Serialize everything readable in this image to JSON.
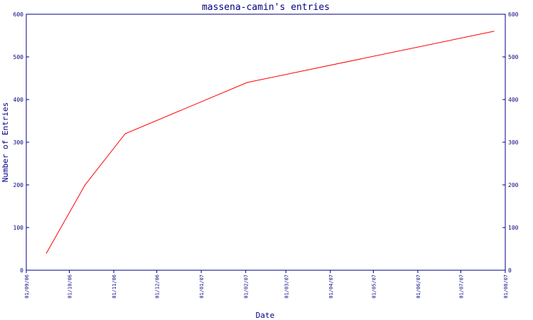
{
  "chart_data": {
    "type": "line",
    "title": "massena-camin's entries",
    "xlabel": "Date",
    "ylabel": "Number of Entries",
    "ylim": [
      0,
      600
    ],
    "xlim": [
      "2006-09-01",
      "2007-08-01"
    ],
    "y_ticks": [
      0,
      100,
      200,
      300,
      400,
      500,
      600
    ],
    "y_tick_labels": [
      "0",
      "100",
      "200",
      "300",
      "400",
      "500",
      "600"
    ],
    "x_ticks": [
      "2006-09-01",
      "2006-10-01",
      "2006-11-01",
      "2006-12-01",
      "2007-01-01",
      "2007-02-01",
      "2007-03-01",
      "2007-04-01",
      "2007-05-01",
      "2007-06-01",
      "2007-07-01",
      "2007-08-01"
    ],
    "x_tick_labels": [
      "01/09/06",
      "01/10/06",
      "01/11/06",
      "01/12/06",
      "01/01/07",
      "01/02/07",
      "01/03/07",
      "01/04/07",
      "01/05/07",
      "01/06/07",
      "01/07/07",
      "01/08/07"
    ],
    "grid": false,
    "series": [
      {
        "color": "#ff0000",
        "points": [
          {
            "x": "2006-09-15",
            "y": 40
          },
          {
            "x": "2006-10-12",
            "y": 200
          },
          {
            "x": "2006-11-09",
            "y": 320
          },
          {
            "x": "2007-02-02",
            "y": 440
          },
          {
            "x": "2007-07-24",
            "y": 560
          }
        ]
      }
    ],
    "axis_color": "#000080"
  }
}
